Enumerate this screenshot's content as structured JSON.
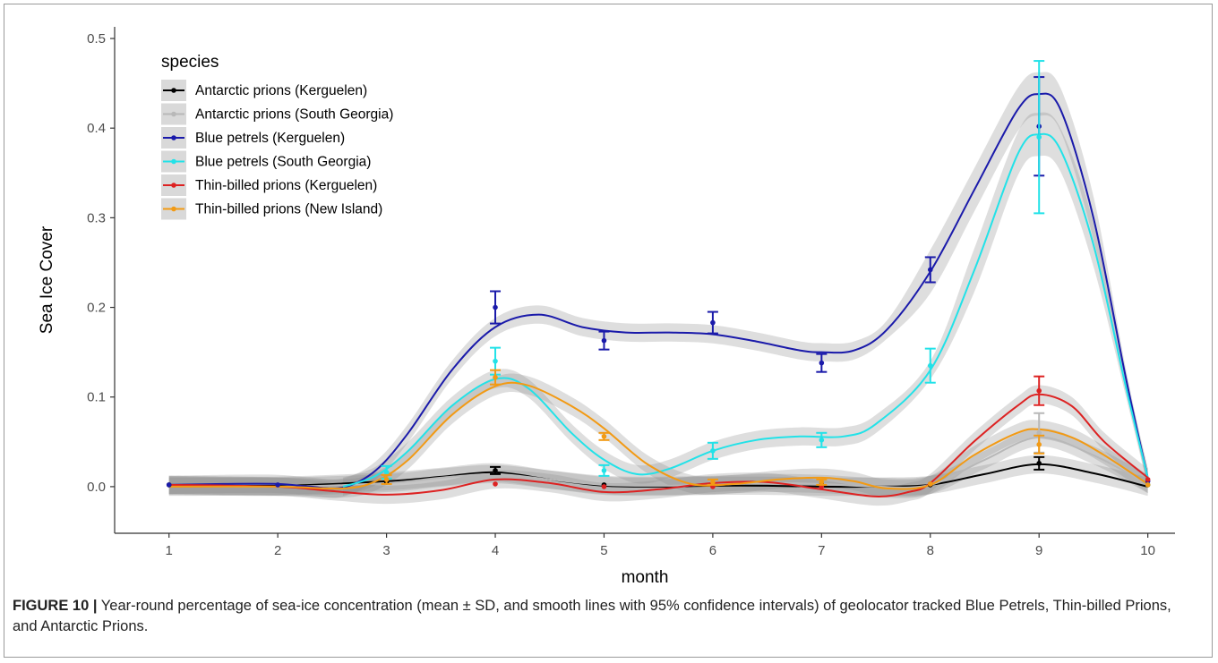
{
  "chart_data": {
    "type": "line",
    "xlabel": "month",
    "ylabel": "Sea Ice Cover",
    "xlim": [
      0.5,
      10.25
    ],
    "ylim": [
      -0.052,
      0.513
    ],
    "x_ticks": [
      1,
      2,
      3,
      4,
      5,
      6,
      7,
      8,
      9,
      10
    ],
    "y_ticks": [
      0.0,
      0.1,
      0.2,
      0.3,
      0.4,
      0.5
    ],
    "y_tick_labels": [
      "0.0",
      "0.1",
      "0.2",
      "0.3",
      "0.4",
      "0.5"
    ],
    "grid": false,
    "legend": {
      "title": "species",
      "position": "top-left"
    },
    "series": [
      {
        "name": "Antarctic prions (Kerguelen)",
        "color": "#000000",
        "points": [
          {
            "x": 1,
            "y": 0.002,
            "sd": 0
          },
          {
            "x": 3,
            "y": 0.005,
            "sd": 0
          },
          {
            "x": 4,
            "y": 0.018,
            "sd": 0.004
          },
          {
            "x": 5,
            "y": 0.002,
            "sd": 0
          },
          {
            "x": 7,
            "y": 0.002,
            "sd": 0
          },
          {
            "x": 8,
            "y": 0.002,
            "sd": 0
          },
          {
            "x": 9,
            "y": 0.026,
            "sd": 0.007
          },
          {
            "x": 10,
            "y": 0.002,
            "sd": 0
          }
        ],
        "smooth": [
          [
            1,
            0.002
          ],
          [
            2,
            0.001
          ],
          [
            3,
            0.006
          ],
          [
            3.5,
            0.011
          ],
          [
            4,
            0.016
          ],
          [
            4.5,
            0.008
          ],
          [
            5,
            0.001
          ],
          [
            5.5,
            0.0
          ],
          [
            6,
            0.001
          ],
          [
            6.5,
            0.001
          ],
          [
            7,
            0.0
          ],
          [
            7.5,
            0.0
          ],
          [
            8,
            0.002
          ],
          [
            8.5,
            0.014
          ],
          [
            9,
            0.025
          ],
          [
            9.5,
            0.015
          ],
          [
            10,
            0.0
          ]
        ]
      },
      {
        "name": "Antarctic prions (South Georgia)",
        "color": "#b8b8b8",
        "points": [
          {
            "x": 9,
            "y": 0.06,
            "sd": 0.022
          }
        ],
        "smooth": [
          [
            1,
            0.001
          ],
          [
            2,
            0.0
          ],
          [
            3,
            0.004
          ],
          [
            3.5,
            0.01
          ],
          [
            4,
            0.014
          ],
          [
            4.5,
            0.008
          ],
          [
            5,
            0.002
          ],
          [
            5.5,
            0.001
          ],
          [
            6,
            0.002
          ],
          [
            6.5,
            0.004
          ],
          [
            7,
            0.003
          ],
          [
            7.5,
            0.0
          ],
          [
            8,
            0.002
          ],
          [
            8.5,
            0.03
          ],
          [
            9,
            0.055
          ],
          [
            9.5,
            0.035
          ],
          [
            10,
            0.003
          ]
        ]
      },
      {
        "name": "Blue petrels (Kerguelen)",
        "color": "#1a1aaa",
        "points": [
          {
            "x": 1,
            "y": 0.002,
            "sd": 0
          },
          {
            "x": 2,
            "y": 0.002,
            "sd": 0
          },
          {
            "x": 4,
            "y": 0.2,
            "sd": 0.018
          },
          {
            "x": 5,
            "y": 0.163,
            "sd": 0.01
          },
          {
            "x": 6,
            "y": 0.183,
            "sd": 0.012
          },
          {
            "x": 7,
            "y": 0.138,
            "sd": 0.01
          },
          {
            "x": 8,
            "y": 0.242,
            "sd": 0.014
          },
          {
            "x": 9,
            "y": 0.402,
            "sd": 0.055
          },
          {
            "x": 10,
            "y": 0.006,
            "sd": 0
          }
        ],
        "smooth": [
          [
            1,
            0.002
          ],
          [
            1.5,
            0.003
          ],
          [
            2,
            0.003
          ],
          [
            2.3,
            0.0
          ],
          [
            2.6,
            -0.001
          ],
          [
            2.9,
            0.018
          ],
          [
            3.2,
            0.06
          ],
          [
            3.6,
            0.13
          ],
          [
            4,
            0.178
          ],
          [
            4.4,
            0.192
          ],
          [
            4.8,
            0.178
          ],
          [
            5.2,
            0.172
          ],
          [
            5.6,
            0.172
          ],
          [
            6,
            0.17
          ],
          [
            6.4,
            0.162
          ],
          [
            6.8,
            0.152
          ],
          [
            7,
            0.15
          ],
          [
            7.3,
            0.152
          ],
          [
            7.6,
            0.175
          ],
          [
            8,
            0.24
          ],
          [
            8.4,
            0.33
          ],
          [
            8.8,
            0.42
          ],
          [
            9,
            0.438
          ],
          [
            9.2,
            0.42
          ],
          [
            9.5,
            0.3
          ],
          [
            9.8,
            0.12
          ],
          [
            10,
            0.01
          ]
        ]
      },
      {
        "name": "Blue petrels (South Georgia)",
        "color": "#22e2e8",
        "points": [
          {
            "x": 3,
            "y": 0.016,
            "sd": 0.007
          },
          {
            "x": 4,
            "y": 0.14,
            "sd": 0.015
          },
          {
            "x": 5,
            "y": 0.018,
            "sd": 0.006
          },
          {
            "x": 6,
            "y": 0.04,
            "sd": 0.009
          },
          {
            "x": 7,
            "y": 0.052,
            "sd": 0.008
          },
          {
            "x": 8,
            "y": 0.135,
            "sd": 0.019
          },
          {
            "x": 9,
            "y": 0.39,
            "sd": 0.085
          },
          {
            "x": 10,
            "y": 0.002,
            "sd": 0
          }
        ],
        "smooth": [
          [
            2.6,
            0.0
          ],
          [
            2.9,
            0.012
          ],
          [
            3.2,
            0.04
          ],
          [
            3.6,
            0.09
          ],
          [
            4,
            0.12
          ],
          [
            4.3,
            0.11
          ],
          [
            4.7,
            0.06
          ],
          [
            5,
            0.03
          ],
          [
            5.3,
            0.014
          ],
          [
            5.6,
            0.02
          ],
          [
            6,
            0.04
          ],
          [
            6.4,
            0.052
          ],
          [
            6.8,
            0.056
          ],
          [
            7.2,
            0.056
          ],
          [
            7.5,
            0.07
          ],
          [
            8,
            0.13
          ],
          [
            8.4,
            0.24
          ],
          [
            8.8,
            0.37
          ],
          [
            9,
            0.393
          ],
          [
            9.2,
            0.375
          ],
          [
            9.5,
            0.27
          ],
          [
            9.8,
            0.11
          ],
          [
            10,
            0.01
          ]
        ]
      },
      {
        "name": "Thin-billed prions (Kerguelen)",
        "color": "#dd2222",
        "points": [
          {
            "x": 4,
            "y": 0.003,
            "sd": 0
          },
          {
            "x": 5,
            "y": 0.0,
            "sd": 0
          },
          {
            "x": 6,
            "y": 0.0,
            "sd": 0
          },
          {
            "x": 7,
            "y": 0.0,
            "sd": 0
          },
          {
            "x": 8,
            "y": 0.003,
            "sd": 0
          },
          {
            "x": 9,
            "y": 0.107,
            "sd": 0.016
          },
          {
            "x": 10,
            "y": 0.008,
            "sd": 0
          }
        ],
        "smooth": [
          [
            1,
            0.002
          ],
          [
            2,
            0.0
          ],
          [
            2.5,
            -0.005
          ],
          [
            3,
            -0.009
          ],
          [
            3.5,
            -0.004
          ],
          [
            4,
            0.008
          ],
          [
            4.5,
            0.004
          ],
          [
            5,
            -0.006
          ],
          [
            5.5,
            -0.003
          ],
          [
            6,
            0.004
          ],
          [
            6.5,
            0.005
          ],
          [
            7,
            -0.003
          ],
          [
            7.5,
            -0.011
          ],
          [
            7.8,
            -0.006
          ],
          [
            8,
            0.004
          ],
          [
            8.4,
            0.05
          ],
          [
            8.8,
            0.09
          ],
          [
            9,
            0.103
          ],
          [
            9.3,
            0.09
          ],
          [
            9.6,
            0.05
          ],
          [
            10,
            0.01
          ]
        ]
      },
      {
        "name": "Thin-billed prions (New Island)",
        "color": "#f29a14",
        "points": [
          {
            "x": 3,
            "y": 0.008,
            "sd": 0.005
          },
          {
            "x": 4,
            "y": 0.122,
            "sd": 0.008
          },
          {
            "x": 5,
            "y": 0.056,
            "sd": 0.004
          },
          {
            "x": 6,
            "y": 0.005,
            "sd": 0.003
          },
          {
            "x": 7,
            "y": 0.005,
            "sd": 0.003
          },
          {
            "x": 8,
            "y": 0.003,
            "sd": 0
          },
          {
            "x": 9,
            "y": 0.047,
            "sd": 0.01
          },
          {
            "x": 10,
            "y": 0.002,
            "sd": 0
          }
        ],
        "smooth": [
          [
            1,
            0.0
          ],
          [
            2,
            0.0
          ],
          [
            2.6,
            -0.002
          ],
          [
            2.9,
            0.006
          ],
          [
            3.2,
            0.03
          ],
          [
            3.6,
            0.08
          ],
          [
            4,
            0.112
          ],
          [
            4.3,
            0.113
          ],
          [
            4.7,
            0.09
          ],
          [
            5,
            0.065
          ],
          [
            5.4,
            0.025
          ],
          [
            5.8,
            0.003
          ],
          [
            6.2,
            0.003
          ],
          [
            6.6,
            0.008
          ],
          [
            7,
            0.01
          ],
          [
            7.3,
            0.006
          ],
          [
            7.6,
            -0.002
          ],
          [
            8,
            0.002
          ],
          [
            8.4,
            0.035
          ],
          [
            8.8,
            0.06
          ],
          [
            9,
            0.064
          ],
          [
            9.3,
            0.055
          ],
          [
            9.6,
            0.035
          ],
          [
            10,
            0.003
          ]
        ]
      }
    ]
  },
  "caption": {
    "label": "FIGURE 10 |",
    "text": " Year-round percentage of sea-ice concentration (mean ± SD, and smooth lines with 95% confidence intervals) of geolocator tracked Blue Petrels, Thin-billed Prions, and Antarctic Prions."
  }
}
